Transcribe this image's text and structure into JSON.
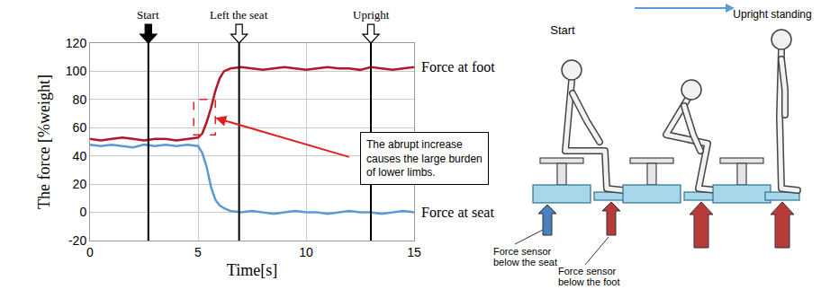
{
  "chart_data": {
    "type": "line",
    "xlabel": "Time[s]",
    "ylabel": "The force [%weight]",
    "xlim": [
      0,
      15
    ],
    "ylim": [
      -20,
      120
    ],
    "xticks": [
      0,
      5,
      10,
      15
    ],
    "yticks": [
      -20,
      0,
      20,
      40,
      60,
      80,
      100,
      120
    ],
    "grid": true,
    "x": [
      0,
      0.5,
      1,
      1.5,
      2,
      2.5,
      3,
      3.5,
      4,
      4.5,
      5,
      5.2,
      5.4,
      5.6,
      5.8,
      6,
      6.2,
      6.5,
      7,
      7.5,
      8,
      8.5,
      9,
      9.5,
      10,
      10.5,
      11,
      11.5,
      12,
      12.5,
      13,
      13.5,
      14,
      14.5,
      15
    ],
    "series": [
      {
        "name": "Force at foot",
        "color": "#b5152b",
        "values": [
          52,
          51,
          52,
          53,
          52,
          51,
          52,
          52,
          51,
          52,
          53,
          56,
          64,
          74,
          86,
          95,
          100,
          102,
          103,
          102,
          101,
          102,
          103,
          102,
          101,
          102,
          103,
          102,
          102,
          101,
          103,
          102,
          101,
          102,
          103
        ]
      },
      {
        "name": "Force at seat",
        "color": "#5b9bd5",
        "values": [
          48,
          47,
          48,
          47,
          46,
          48,
          47,
          48,
          47,
          48,
          47,
          42,
          32,
          18,
          9,
          5,
          3,
          1,
          0,
          1,
          0,
          -1,
          0,
          1,
          0,
          0,
          -1,
          0,
          1,
          0,
          0,
          -1,
          0,
          1,
          0
        ]
      }
    ],
    "events": [
      {
        "x": 2.7,
        "label": "Start"
      },
      {
        "x": 6.9,
        "label": "Left the seat"
      },
      {
        "x": 13,
        "label": "Upright"
      }
    ],
    "highlight": {
      "x": [
        4.8,
        5.8
      ],
      "y": [
        55,
        80
      ]
    },
    "annotation": {
      "text": "The abrupt increase causes the large burden of lower limbs.",
      "x": 5.8,
      "y": 67
    }
  },
  "diagram": {
    "start": "Start",
    "end": "Upright standing",
    "seat_sensor": "Force sensor below the seat",
    "foot_sensor": "Force sensor below the foot"
  }
}
